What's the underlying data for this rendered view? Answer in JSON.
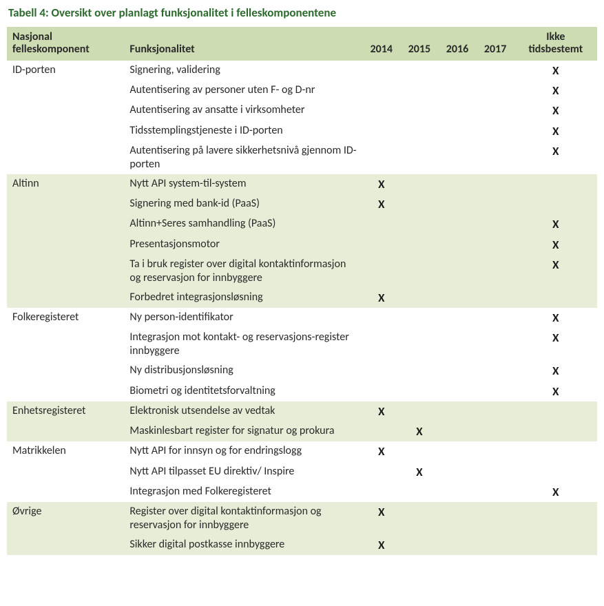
{
  "title": "Tabell 4: Oversikt over planlagt funksjonalitet i felleskomponentene",
  "columns": {
    "komp": "Nasjonal felleskomponent",
    "func": "Funksjonalitet",
    "y2014": "2014",
    "y2015": "2015",
    "y2016": "2016",
    "y2017": "2017",
    "ikke": "Ikke tidsbestemt"
  },
  "markGlyph": "X",
  "groups": [
    {
      "name": "ID-porten",
      "band": false,
      "rows": [
        {
          "func": "Signering, validering",
          "y2014": false,
          "y2015": false,
          "y2016": false,
          "y2017": false,
          "ikke": true
        },
        {
          "func": "Autentisering av personer uten F- og D-nr",
          "y2014": false,
          "y2015": false,
          "y2016": false,
          "y2017": false,
          "ikke": true
        },
        {
          "func": "Autentisering av ansatte i virksomheter",
          "y2014": false,
          "y2015": false,
          "y2016": false,
          "y2017": false,
          "ikke": true
        },
        {
          "func": "Tidsstemplingstjeneste i ID-porten",
          "y2014": false,
          "y2015": false,
          "y2016": false,
          "y2017": false,
          "ikke": true
        },
        {
          "func": "Autentisering på lavere sikkerhetsnivå gjennom ID-porten",
          "y2014": false,
          "y2015": false,
          "y2016": false,
          "y2017": false,
          "ikke": true
        }
      ]
    },
    {
      "name": "Altinn",
      "band": true,
      "rows": [
        {
          "func": "Nytt API system-til-system",
          "y2014": true,
          "y2015": false,
          "y2016": false,
          "y2017": false,
          "ikke": false
        },
        {
          "func": "Signering med bank-id (PaaS)",
          "y2014": true,
          "y2015": false,
          "y2016": false,
          "y2017": false,
          "ikke": false
        },
        {
          "func": "Altinn+Seres samhandling (PaaS)",
          "y2014": false,
          "y2015": false,
          "y2016": false,
          "y2017": false,
          "ikke": true
        },
        {
          "func": "Presentasjonsmotor",
          "y2014": false,
          "y2015": false,
          "y2016": false,
          "y2017": false,
          "ikke": true
        },
        {
          "func": "Ta i bruk register over digital kontaktinformasjon og reservasjon for innbyggere",
          "y2014": false,
          "y2015": false,
          "y2016": false,
          "y2017": false,
          "ikke": true
        },
        {
          "func": "Forbedret integrasjonsløsning",
          "y2014": true,
          "y2015": false,
          "y2016": false,
          "y2017": false,
          "ikke": false
        }
      ]
    },
    {
      "name": "Folkeregisteret",
      "band": false,
      "rows": [
        {
          "func": "Ny person-identifikator",
          "y2014": false,
          "y2015": false,
          "y2016": false,
          "y2017": false,
          "ikke": true
        },
        {
          "func": "Integrasjon mot kontakt- og reservasjons-register innbyggere",
          "y2014": false,
          "y2015": false,
          "y2016": false,
          "y2017": false,
          "ikke": true
        },
        {
          "func": "Ny distribusjonsløsning",
          "y2014": false,
          "y2015": false,
          "y2016": false,
          "y2017": false,
          "ikke": true
        },
        {
          "func": "Biometri og identitetsforvaltning",
          "y2014": false,
          "y2015": false,
          "y2016": false,
          "y2017": false,
          "ikke": true
        }
      ]
    },
    {
      "name": "Enhetsregisteret",
      "band": true,
      "rows": [
        {
          "func": "Elektronisk utsendelse av vedtak",
          "y2014": true,
          "y2015": false,
          "y2016": false,
          "y2017": false,
          "ikke": false
        },
        {
          "func": "Maskinlesbart register for signatur og prokura",
          "y2014": false,
          "y2015": true,
          "y2016": false,
          "y2017": false,
          "ikke": false
        }
      ]
    },
    {
      "name": "Matrikkelen",
      "band": false,
      "rows": [
        {
          "func": "Nytt API for innsyn og for endringslogg",
          "y2014": true,
          "y2015": false,
          "y2016": false,
          "y2017": false,
          "ikke": false
        },
        {
          "func": "Nytt API tilpasset EU direktiv/ Inspire",
          "y2014": false,
          "y2015": true,
          "y2016": false,
          "y2017": false,
          "ikke": false
        },
        {
          "func": "Integrasjon med Folkeregisteret",
          "y2014": false,
          "y2015": false,
          "y2016": false,
          "y2017": false,
          "ikke": true
        }
      ]
    },
    {
      "name": "Øvrige",
      "band": true,
      "rows": [
        {
          "func": "Register over digital kontaktinformasjon og reservasjon for innbyggere",
          "y2014": true,
          "y2015": false,
          "y2016": false,
          "y2017": false,
          "ikke": false
        },
        {
          "func": "Sikker digital postkasse innbyggere",
          "y2014": true,
          "y2015": false,
          "y2016": false,
          "y2017": false,
          "ikke": false
        }
      ]
    }
  ]
}
